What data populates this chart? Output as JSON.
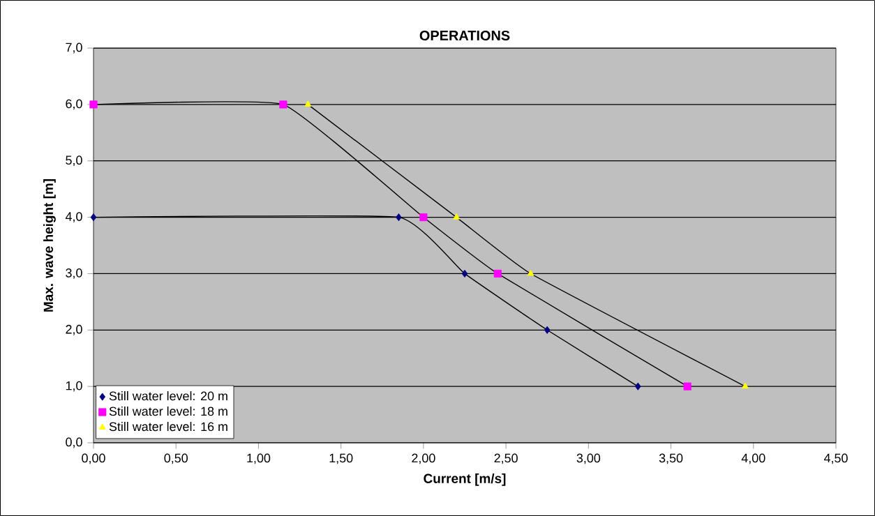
{
  "chart_data": {
    "type": "line",
    "title": "OPERATIONS",
    "xlabel": "Current [m/s]",
    "ylabel": "Max. wave height [m]",
    "series": [
      {
        "name": "Still water level: 20 m",
        "color": "#000080",
        "marker": "diamond",
        "x": [
          0,
          1.85,
          2.25,
          2.75,
          3.3
        ],
        "values": [
          4,
          4,
          3,
          2,
          1
        ]
      },
      {
        "name": "Still water level: 18 m",
        "color": "#ff00ff",
        "marker": "square",
        "x": [
          0,
          1.15,
          2.0,
          2.45,
          3.6
        ],
        "values": [
          6,
          6,
          4,
          3,
          1
        ]
      },
      {
        "name": "Still water level: 16 m",
        "color": "#ffff00",
        "marker": "triangle",
        "x": [
          1.3,
          2.2,
          2.65,
          3.95
        ],
        "values": [
          6,
          4,
          3,
          1
        ]
      }
    ],
    "xlim": [
      0,
      4.5
    ],
    "ylim": [
      0,
      7
    ],
    "xticks": [
      {
        "value": 0,
        "label": "0,00"
      },
      {
        "value": 0.5,
        "label": "0,50"
      },
      {
        "value": 1,
        "label": "1,00"
      },
      {
        "value": 1.5,
        "label": "1,50"
      },
      {
        "value": 2,
        "label": "2,00"
      },
      {
        "value": 2.5,
        "label": "2,50"
      },
      {
        "value": 3,
        "label": "3,00"
      },
      {
        "value": 3.5,
        "label": "3,50"
      },
      {
        "value": 4,
        "label": "4,00"
      },
      {
        "value": 4.5,
        "label": "4,50"
      }
    ],
    "yticks": [
      {
        "value": 0,
        "label": "0,0"
      },
      {
        "value": 1,
        "label": "1,0"
      },
      {
        "value": 2,
        "label": "2,0"
      },
      {
        "value": 3,
        "label": "3,0"
      },
      {
        "value": 4,
        "label": "4,0"
      },
      {
        "value": 5,
        "label": "5,0"
      },
      {
        "value": 6,
        "label": "6,0"
      },
      {
        "value": 7,
        "label": "7,0"
      }
    ],
    "grid": "y",
    "legend": "bottom left"
  }
}
